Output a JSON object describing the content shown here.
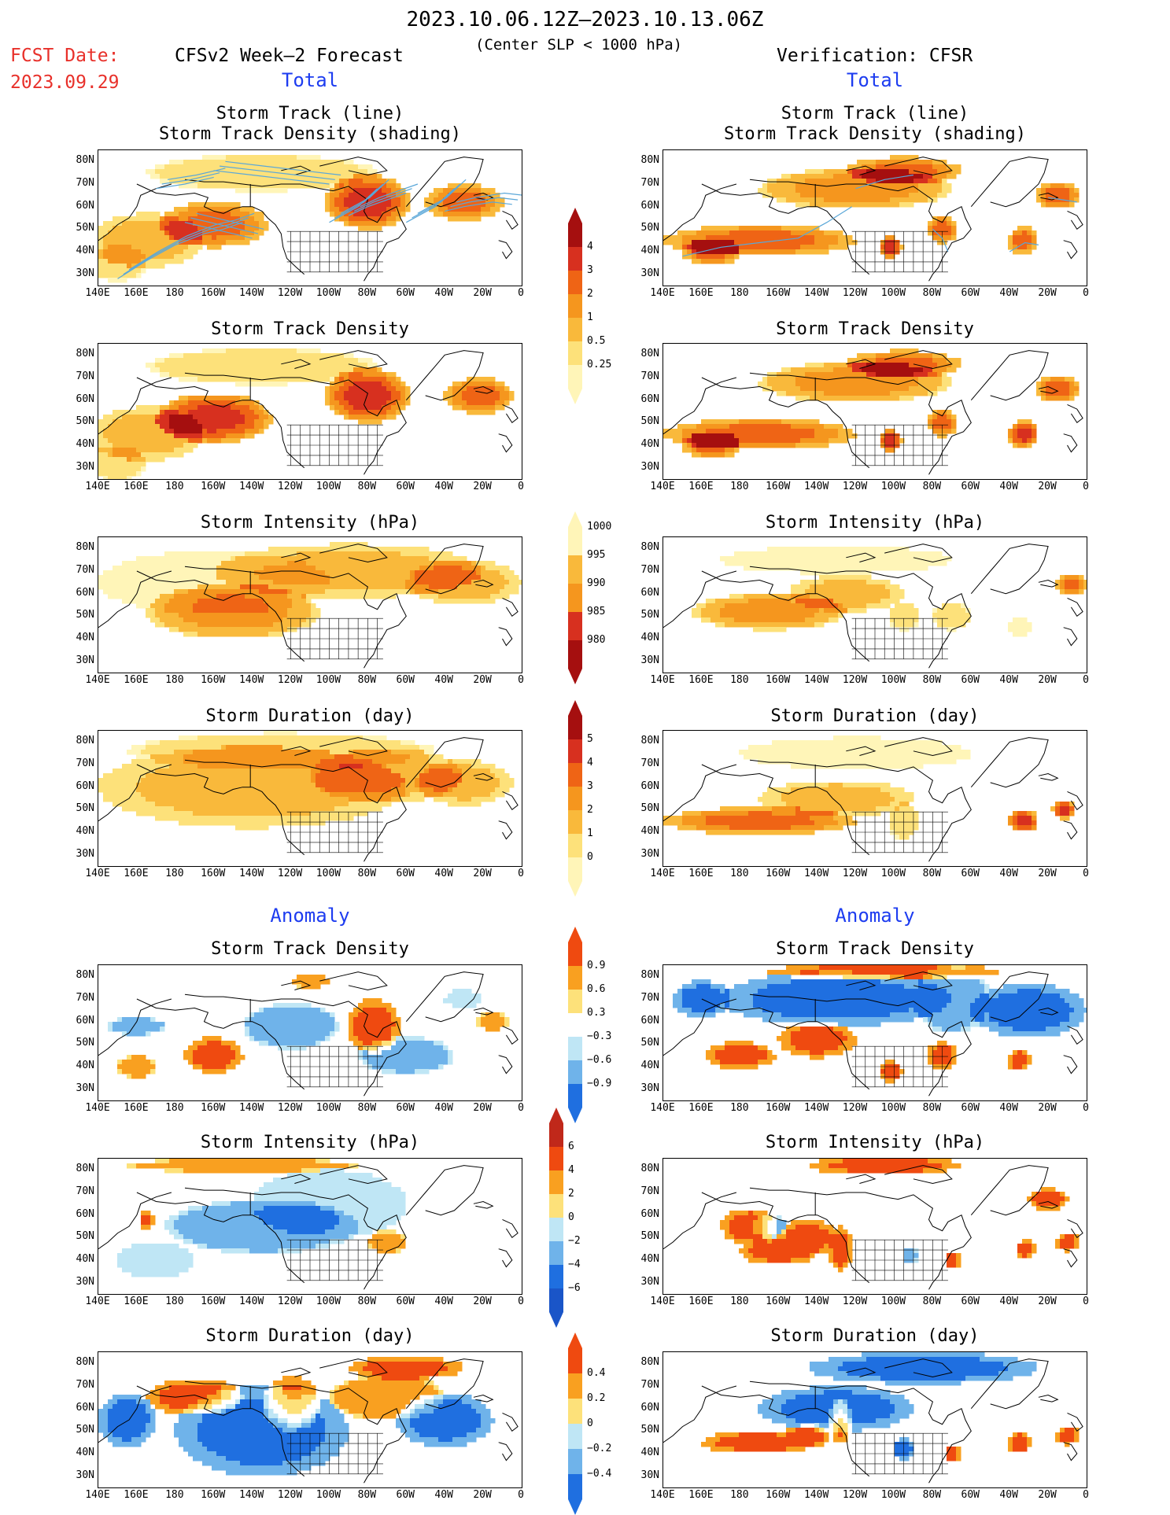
{
  "header": {
    "date_range": "2023.10.06.12Z–2023.10.13.06Z",
    "subtitle": "(Center SLP < 1000 hPa)",
    "fcst_label": "FCST Date:",
    "fcst_date": "2023.09.29",
    "model_label": "CFSv2 Week–2 Forecast",
    "verification_label": "Verification: CFSR"
  },
  "sections": {
    "total_left": "Total",
    "total_right": "Total",
    "anomaly_left": "Anomaly",
    "anomaly_right": "Anomaly"
  },
  "panel_titles": {
    "p1_line1": "Storm Track (line)",
    "p1_line2": "Storm Track Density (shading)",
    "density": "Storm Track Density",
    "intensity": "Storm Intensity (hPa)",
    "duration": "Storm Duration (day)"
  },
  "axes": {
    "lat_labels": [
      "80N",
      "70N",
      "60N",
      "50N",
      "40N",
      "30N"
    ],
    "lon_labels": [
      "140E",
      "160E",
      "180",
      "160W",
      "140W",
      "120W",
      "100W",
      "80W",
      "60W",
      "40W",
      "20W",
      "0"
    ]
  },
  "colorbars": {
    "density_total": [
      "4",
      "3",
      "2",
      "1",
      "0.5",
      "0.25"
    ],
    "intensity_total": [
      "1000",
      "995",
      "990",
      "985",
      "980"
    ],
    "duration_total": [
      "5",
      "4",
      "3",
      "2",
      "1",
      "0"
    ],
    "density_anom": [
      "0.9",
      "0.6",
      "0.3",
      "−0.3",
      "−0.6",
      "−0.9"
    ],
    "intensity_anom": [
      "6",
      "4",
      "2",
      "0",
      "−2",
      "−4",
      "−6"
    ],
    "duration_anom": [
      "0.4",
      "0.2",
      "0",
      "−0.2",
      "−0.4"
    ]
  },
  "colors": {
    "total_scale": [
      "#fff5b8",
      "#fde17a",
      "#f9b93b",
      "#f5961e",
      "#ef6415",
      "#d7301f",
      "#a50f0f"
    ],
    "anom_pos": [
      "#fde17a",
      "#f9a020",
      "#ef4a10"
    ],
    "anom_neg": [
      "#bfe6f5",
      "#6fb3ea",
      "#1f6fe0"
    ],
    "track_line": "#5aa7d8"
  }
}
